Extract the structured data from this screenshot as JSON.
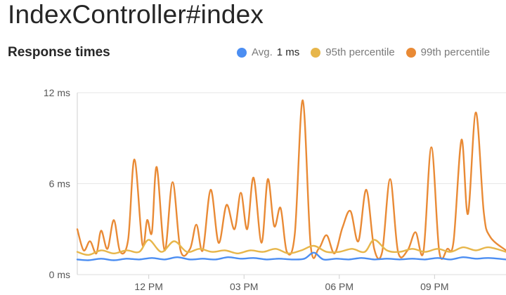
{
  "header": {
    "title": "IndexController#index"
  },
  "chart_data": {
    "type": "line",
    "title": "Response times",
    "xlabel": "",
    "ylabel": "",
    "ylim": [
      0,
      12
    ],
    "y_ticks": [
      {
        "value": 0,
        "label": "0 ms"
      },
      {
        "value": 6,
        "label": "6 ms"
      },
      {
        "value": 12,
        "label": "12 ms"
      }
    ],
    "xlim": [
      9.75,
      23.25
    ],
    "x_ticks": [
      {
        "value": 12,
        "label": "12 PM"
      },
      {
        "value": 15,
        "label": "03 PM"
      },
      {
        "value": 18,
        "label": "06 PM"
      },
      {
        "value": 21,
        "label": "09 PM"
      }
    ],
    "grid": {
      "horizontal": true,
      "vertical": false
    },
    "legend_position": "top-right",
    "series": [
      {
        "name": "Avg.",
        "value_label": "1 ms",
        "color": "#4c8ef2",
        "points": [
          [
            9.75,
            1.0
          ],
          [
            10.1,
            0.95
          ],
          [
            10.5,
            1.05
          ],
          [
            10.9,
            0.95
          ],
          [
            11.3,
            1.05
          ],
          [
            11.7,
            1.0
          ],
          [
            12.1,
            1.1
          ],
          [
            12.5,
            1.0
          ],
          [
            12.9,
            1.15
          ],
          [
            13.3,
            1.0
          ],
          [
            13.7,
            1.05
          ],
          [
            14.1,
            1.0
          ],
          [
            14.5,
            1.15
          ],
          [
            14.9,
            1.05
          ],
          [
            15.3,
            1.1
          ],
          [
            15.7,
            1.0
          ],
          [
            16.1,
            1.05
          ],
          [
            16.5,
            1.0
          ],
          [
            16.9,
            1.05
          ],
          [
            17.2,
            1.45
          ],
          [
            17.5,
            1.0
          ],
          [
            17.9,
            1.05
          ],
          [
            18.3,
            1.0
          ],
          [
            18.7,
            1.1
          ],
          [
            19.1,
            1.0
          ],
          [
            19.5,
            1.05
          ],
          [
            19.9,
            1.0
          ],
          [
            20.3,
            1.05
          ],
          [
            20.7,
            1.0
          ],
          [
            21.1,
            1.1
          ],
          [
            21.5,
            1.0
          ],
          [
            21.9,
            1.15
          ],
          [
            22.3,
            1.05
          ],
          [
            22.7,
            1.1
          ],
          [
            23.25,
            1.0
          ]
        ]
      },
      {
        "name": "95th percentile",
        "color": "#e7b64a",
        "points": [
          [
            9.75,
            1.5
          ],
          [
            10.1,
            1.3
          ],
          [
            10.5,
            1.6
          ],
          [
            10.9,
            1.4
          ],
          [
            11.3,
            1.6
          ],
          [
            11.7,
            1.5
          ],
          [
            12.0,
            2.3
          ],
          [
            12.4,
            1.5
          ],
          [
            12.8,
            2.2
          ],
          [
            13.2,
            1.5
          ],
          [
            13.6,
            1.7
          ],
          [
            14.0,
            1.5
          ],
          [
            14.4,
            1.6
          ],
          [
            14.8,
            1.4
          ],
          [
            15.2,
            1.6
          ],
          [
            15.6,
            1.5
          ],
          [
            16.0,
            1.7
          ],
          [
            16.4,
            1.4
          ],
          [
            16.8,
            1.6
          ],
          [
            17.2,
            1.9
          ],
          [
            17.6,
            1.5
          ],
          [
            18.0,
            1.5
          ],
          [
            18.4,
            1.7
          ],
          [
            18.8,
            1.5
          ],
          [
            19.1,
            2.3
          ],
          [
            19.5,
            1.6
          ],
          [
            19.9,
            1.5
          ],
          [
            20.3,
            1.7
          ],
          [
            20.7,
            1.5
          ],
          [
            21.1,
            1.7
          ],
          [
            21.5,
            1.5
          ],
          [
            21.9,
            1.8
          ],
          [
            22.3,
            1.6
          ],
          [
            22.7,
            1.8
          ],
          [
            23.25,
            1.5
          ]
        ]
      },
      {
        "name": "99th percentile",
        "color": "#e98a35",
        "points": [
          [
            9.75,
            3.0
          ],
          [
            9.95,
            1.6
          ],
          [
            10.15,
            2.2
          ],
          [
            10.35,
            1.4
          ],
          [
            10.5,
            2.9
          ],
          [
            10.7,
            1.7
          ],
          [
            10.9,
            3.6
          ],
          [
            11.1,
            1.5
          ],
          [
            11.35,
            2.3
          ],
          [
            11.55,
            7.6
          ],
          [
            11.8,
            2.0
          ],
          [
            11.95,
            3.6
          ],
          [
            12.1,
            2.8
          ],
          [
            12.25,
            7.1
          ],
          [
            12.5,
            1.6
          ],
          [
            12.75,
            6.1
          ],
          [
            13.0,
            1.6
          ],
          [
            13.3,
            1.7
          ],
          [
            13.5,
            3.3
          ],
          [
            13.7,
            1.6
          ],
          [
            13.95,
            5.6
          ],
          [
            14.2,
            2.1
          ],
          [
            14.45,
            4.6
          ],
          [
            14.7,
            3.0
          ],
          [
            14.9,
            5.4
          ],
          [
            15.1,
            3.0
          ],
          [
            15.3,
            6.4
          ],
          [
            15.55,
            2.1
          ],
          [
            15.75,
            6.3
          ],
          [
            15.95,
            3.2
          ],
          [
            16.15,
            4.4
          ],
          [
            16.35,
            1.5
          ],
          [
            16.6,
            2.7
          ],
          [
            16.85,
            11.5
          ],
          [
            17.1,
            1.9
          ],
          [
            17.35,
            1.7
          ],
          [
            17.6,
            2.6
          ],
          [
            17.85,
            1.4
          ],
          [
            18.1,
            3.1
          ],
          [
            18.35,
            4.2
          ],
          [
            18.6,
            2.2
          ],
          [
            18.85,
            5.6
          ],
          [
            19.1,
            1.7
          ],
          [
            19.35,
            1.5
          ],
          [
            19.6,
            6.3
          ],
          [
            19.85,
            1.5
          ],
          [
            20.15,
            1.6
          ],
          [
            20.4,
            2.8
          ],
          [
            20.65,
            1.5
          ],
          [
            20.9,
            8.4
          ],
          [
            21.15,
            1.5
          ],
          [
            21.4,
            1.7
          ],
          [
            21.6,
            2.2
          ],
          [
            21.85,
            8.9
          ],
          [
            22.05,
            4.0
          ],
          [
            22.3,
            10.7
          ],
          [
            22.55,
            4.1
          ],
          [
            22.75,
            2.5
          ],
          [
            23.25,
            1.6
          ]
        ]
      }
    ]
  }
}
